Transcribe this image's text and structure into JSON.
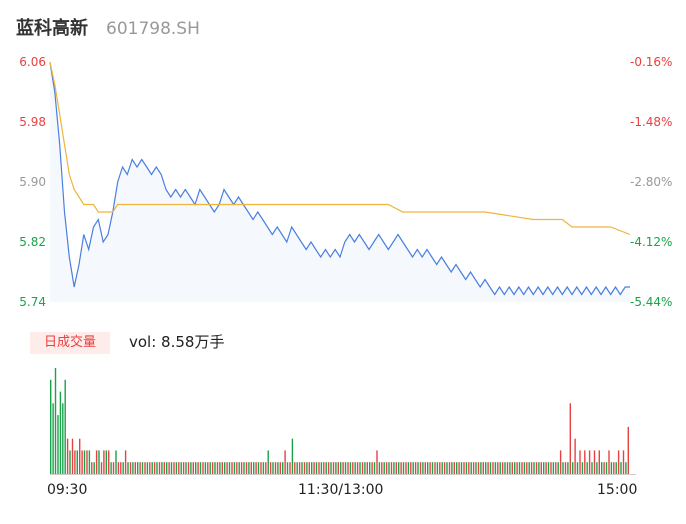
{
  "header": {
    "name": "蓝科高新",
    "code": "601798.SH"
  },
  "price_axis": [
    {
      "price": "6.06",
      "pct": "-0.16%",
      "color": "#e84141"
    },
    {
      "price": "5.98",
      "pct": "-1.48%",
      "color": "#e84141"
    },
    {
      "price": "5.90",
      "pct": "-2.80%",
      "color": "#999999"
    },
    {
      "price": "5.82",
      "pct": "-4.12%",
      "color": "#1aa34a"
    },
    {
      "price": "5.74",
      "pct": "-5.44%",
      "color": "#1aa34a"
    }
  ],
  "volume": {
    "tab_label": "日成交量",
    "summary": "vol: 8.58万手"
  },
  "time_axis": [
    "09:30",
    "11:30/13:00",
    "15:00"
  ],
  "colors": {
    "price_line": "#4a7fe0",
    "avg_line": "#f0b43c",
    "up": "#e84141",
    "down": "#1aa34a"
  },
  "chart_data": {
    "type": "line",
    "ylim": [
      5.74,
      6.06
    ],
    "xlim": [
      0,
      240
    ],
    "series": [
      {
        "values": [
          [
            0,
            6.06
          ],
          [
            2,
            6.02
          ],
          [
            4,
            5.95
          ],
          [
            6,
            5.86
          ],
          [
            8,
            5.8
          ],
          [
            10,
            5.76
          ],
          [
            12,
            5.79
          ],
          [
            14,
            5.83
          ],
          [
            16,
            5.81
          ],
          [
            18,
            5.84
          ],
          [
            20,
            5.85
          ],
          [
            22,
            5.82
          ],
          [
            24,
            5.83
          ],
          [
            26,
            5.86
          ],
          [
            28,
            5.9
          ],
          [
            30,
            5.92
          ],
          [
            32,
            5.91
          ],
          [
            34,
            5.93
          ],
          [
            36,
            5.92
          ],
          [
            38,
            5.93
          ],
          [
            40,
            5.92
          ],
          [
            42,
            5.91
          ],
          [
            44,
            5.92
          ],
          [
            46,
            5.91
          ],
          [
            48,
            5.89
          ],
          [
            50,
            5.88
          ],
          [
            52,
            5.89
          ],
          [
            54,
            5.88
          ],
          [
            56,
            5.89
          ],
          [
            58,
            5.88
          ],
          [
            60,
            5.87
          ],
          [
            62,
            5.89
          ],
          [
            64,
            5.88
          ],
          [
            66,
            5.87
          ],
          [
            68,
            5.86
          ],
          [
            70,
            5.87
          ],
          [
            72,
            5.89
          ],
          [
            74,
            5.88
          ],
          [
            76,
            5.87
          ],
          [
            78,
            5.88
          ],
          [
            80,
            5.87
          ],
          [
            82,
            5.86
          ],
          [
            84,
            5.85
          ],
          [
            86,
            5.86
          ],
          [
            88,
            5.85
          ],
          [
            90,
            5.84
          ],
          [
            92,
            5.83
          ],
          [
            94,
            5.84
          ],
          [
            96,
            5.83
          ],
          [
            98,
            5.82
          ],
          [
            100,
            5.84
          ],
          [
            102,
            5.83
          ],
          [
            104,
            5.82
          ],
          [
            106,
            5.81
          ],
          [
            108,
            5.82
          ],
          [
            110,
            5.81
          ],
          [
            112,
            5.8
          ],
          [
            114,
            5.81
          ],
          [
            116,
            5.8
          ],
          [
            118,
            5.81
          ],
          [
            120,
            5.8
          ],
          [
            122,
            5.82
          ],
          [
            124,
            5.83
          ],
          [
            126,
            5.82
          ],
          [
            128,
            5.83
          ],
          [
            130,
            5.82
          ],
          [
            132,
            5.81
          ],
          [
            134,
            5.82
          ],
          [
            136,
            5.83
          ],
          [
            138,
            5.82
          ],
          [
            140,
            5.81
          ],
          [
            142,
            5.82
          ],
          [
            144,
            5.83
          ],
          [
            146,
            5.82
          ],
          [
            148,
            5.81
          ],
          [
            150,
            5.8
          ],
          [
            152,
            5.81
          ],
          [
            154,
            5.8
          ],
          [
            156,
            5.81
          ],
          [
            158,
            5.8
          ],
          [
            160,
            5.79
          ],
          [
            162,
            5.8
          ],
          [
            164,
            5.79
          ],
          [
            166,
            5.78
          ],
          [
            168,
            5.79
          ],
          [
            170,
            5.78
          ],
          [
            172,
            5.77
          ],
          [
            174,
            5.78
          ],
          [
            176,
            5.77
          ],
          [
            178,
            5.76
          ],
          [
            180,
            5.77
          ],
          [
            182,
            5.76
          ],
          [
            184,
            5.75
          ],
          [
            186,
            5.76
          ],
          [
            188,
            5.75
          ],
          [
            190,
            5.76
          ],
          [
            192,
            5.75
          ],
          [
            194,
            5.76
          ],
          [
            196,
            5.75
          ],
          [
            198,
            5.76
          ],
          [
            200,
            5.75
          ],
          [
            202,
            5.76
          ],
          [
            204,
            5.75
          ],
          [
            206,
            5.76
          ],
          [
            208,
            5.75
          ],
          [
            210,
            5.76
          ],
          [
            212,
            5.75
          ],
          [
            214,
            5.76
          ],
          [
            216,
            5.75
          ],
          [
            218,
            5.76
          ],
          [
            220,
            5.75
          ],
          [
            222,
            5.76
          ],
          [
            224,
            5.75
          ],
          [
            226,
            5.76
          ],
          [
            228,
            5.75
          ],
          [
            230,
            5.76
          ],
          [
            232,
            5.75
          ],
          [
            234,
            5.76
          ],
          [
            236,
            5.75
          ],
          [
            238,
            5.76
          ],
          [
            240,
            5.76
          ]
        ]
      },
      {
        "values": [
          [
            0,
            6.06
          ],
          [
            2,
            6.03
          ],
          [
            4,
            5.99
          ],
          [
            6,
            5.95
          ],
          [
            8,
            5.91
          ],
          [
            10,
            5.89
          ],
          [
            12,
            5.88
          ],
          [
            14,
            5.87
          ],
          [
            18,
            5.87
          ],
          [
            20,
            5.86
          ],
          [
            22,
            5.86
          ],
          [
            26,
            5.86
          ],
          [
            28,
            5.87
          ],
          [
            40,
            5.87
          ],
          [
            60,
            5.87
          ],
          [
            80,
            5.87
          ],
          [
            100,
            5.87
          ],
          [
            120,
            5.87
          ],
          [
            140,
            5.87
          ],
          [
            146,
            5.86
          ],
          [
            160,
            5.86
          ],
          [
            180,
            5.86
          ],
          [
            200,
            5.85
          ],
          [
            212,
            5.85
          ],
          [
            216,
            5.84
          ],
          [
            226,
            5.84
          ],
          [
            232,
            5.84
          ],
          [
            240,
            5.83
          ]
        ]
      }
    ],
    "volume": [
      [
        "d",
        8
      ],
      [
        "d",
        6
      ],
      [
        "d",
        9
      ],
      [
        "d",
        5
      ],
      [
        "d",
        7
      ],
      [
        "d",
        6
      ],
      [
        "d",
        8
      ],
      [
        "u",
        3
      ],
      [
        "d",
        2
      ],
      [
        "u",
        3
      ],
      [
        "u",
        2
      ],
      [
        "d",
        2
      ],
      [
        "u",
        3
      ],
      [
        "u",
        2
      ],
      [
        "d",
        2
      ],
      [
        "u",
        2
      ],
      [
        "d",
        2
      ],
      [
        "u",
        1
      ],
      [
        "d",
        1
      ],
      [
        "u",
        2
      ],
      [
        "d",
        2
      ],
      [
        "u",
        1
      ],
      [
        "u",
        2
      ],
      [
        "d",
        2
      ],
      [
        "u",
        2
      ],
      [
        "d",
        1
      ],
      [
        "u",
        1
      ],
      [
        "d",
        2
      ],
      [
        "u",
        1
      ],
      [
        "u",
        1
      ],
      [
        "d",
        1
      ],
      [
        "u",
        2
      ],
      [
        "d",
        1
      ],
      [
        "u",
        1
      ],
      [
        "d",
        1
      ],
      [
        "u",
        1
      ],
      [
        "d",
        1
      ],
      [
        "u",
        1
      ],
      [
        "d",
        1
      ],
      [
        "u",
        1
      ],
      [
        "d",
        1
      ],
      [
        "u",
        1
      ],
      [
        "d",
        1
      ],
      [
        "u",
        1
      ],
      [
        "d",
        1
      ],
      [
        "u",
        1
      ],
      [
        "d",
        1
      ],
      [
        "u",
        1
      ],
      [
        "d",
        1
      ],
      [
        "u",
        1
      ],
      [
        "d",
        1
      ],
      [
        "u",
        1
      ],
      [
        "d",
        1
      ],
      [
        "u",
        1
      ],
      [
        "d",
        1
      ],
      [
        "u",
        1
      ],
      [
        "d",
        1
      ],
      [
        "u",
        1
      ],
      [
        "d",
        1
      ],
      [
        "u",
        1
      ],
      [
        "d",
        1
      ],
      [
        "u",
        1
      ],
      [
        "d",
        1
      ],
      [
        "u",
        1
      ],
      [
        "d",
        1
      ],
      [
        "u",
        1
      ],
      [
        "d",
        1
      ],
      [
        "u",
        1
      ],
      [
        "d",
        1
      ],
      [
        "u",
        1
      ],
      [
        "d",
        1
      ],
      [
        "u",
        1
      ],
      [
        "d",
        1
      ],
      [
        "u",
        1
      ],
      [
        "d",
        1
      ],
      [
        "u",
        1
      ],
      [
        "d",
        1
      ],
      [
        "u",
        1
      ],
      [
        "d",
        1
      ],
      [
        "u",
        1
      ],
      [
        "d",
        1
      ],
      [
        "u",
        1
      ],
      [
        "d",
        1
      ],
      [
        "u",
        1
      ],
      [
        "d",
        1
      ],
      [
        "u",
        1
      ],
      [
        "d",
        1
      ],
      [
        "u",
        1
      ],
      [
        "d",
        1
      ],
      [
        "u",
        1
      ],
      [
        "d",
        2
      ],
      [
        "u",
        1
      ],
      [
        "d",
        1
      ],
      [
        "u",
        1
      ],
      [
        "d",
        1
      ],
      [
        "u",
        1
      ],
      [
        "d",
        1
      ],
      [
        "u",
        2
      ],
      [
        "d",
        1
      ],
      [
        "u",
        1
      ],
      [
        "d",
        3
      ],
      [
        "u",
        1
      ],
      [
        "d",
        1
      ],
      [
        "u",
        1
      ],
      [
        "d",
        1
      ],
      [
        "u",
        1
      ],
      [
        "d",
        1
      ],
      [
        "u",
        1
      ],
      [
        "d",
        1
      ],
      [
        "u",
        1
      ],
      [
        "d",
        1
      ],
      [
        "u",
        1
      ],
      [
        "d",
        1
      ],
      [
        "u",
        1
      ],
      [
        "d",
        1
      ],
      [
        "u",
        1
      ],
      [
        "d",
        1
      ],
      [
        "u",
        1
      ],
      [
        "d",
        1
      ],
      [
        "u",
        1
      ],
      [
        "d",
        1
      ],
      [
        "u",
        1
      ],
      [
        "d",
        1
      ],
      [
        "u",
        1
      ],
      [
        "d",
        1
      ],
      [
        "u",
        1
      ],
      [
        "d",
        1
      ],
      [
        "u",
        1
      ],
      [
        "d",
        1
      ],
      [
        "u",
        1
      ],
      [
        "d",
        1
      ],
      [
        "u",
        1
      ],
      [
        "d",
        1
      ],
      [
        "u",
        1
      ],
      [
        "d",
        1
      ],
      [
        "u",
        2
      ],
      [
        "d",
        1
      ],
      [
        "u",
        1
      ],
      [
        "d",
        1
      ],
      [
        "u",
        1
      ],
      [
        "d",
        1
      ],
      [
        "u",
        1
      ],
      [
        "d",
        1
      ],
      [
        "u",
        1
      ],
      [
        "d",
        1
      ],
      [
        "u",
        1
      ],
      [
        "d",
        1
      ],
      [
        "u",
        1
      ],
      [
        "d",
        1
      ],
      [
        "u",
        1
      ],
      [
        "d",
        1
      ],
      [
        "u",
        1
      ],
      [
        "d",
        1
      ],
      [
        "u",
        1
      ],
      [
        "d",
        1
      ],
      [
        "u",
        1
      ],
      [
        "d",
        1
      ],
      [
        "u",
        1
      ],
      [
        "d",
        1
      ],
      [
        "u",
        1
      ],
      [
        "d",
        1
      ],
      [
        "u",
        1
      ],
      [
        "d",
        1
      ],
      [
        "u",
        1
      ],
      [
        "d",
        1
      ],
      [
        "u",
        1
      ],
      [
        "d",
        1
      ],
      [
        "u",
        1
      ],
      [
        "d",
        1
      ],
      [
        "u",
        1
      ],
      [
        "d",
        1
      ],
      [
        "u",
        1
      ],
      [
        "d",
        1
      ],
      [
        "u",
        1
      ],
      [
        "d",
        1
      ],
      [
        "u",
        1
      ],
      [
        "d",
        1
      ],
      [
        "u",
        1
      ],
      [
        "d",
        1
      ],
      [
        "u",
        1
      ],
      [
        "d",
        1
      ],
      [
        "u",
        1
      ],
      [
        "d",
        1
      ],
      [
        "u",
        1
      ],
      [
        "d",
        1
      ],
      [
        "u",
        1
      ],
      [
        "d",
        1
      ],
      [
        "u",
        1
      ],
      [
        "d",
        1
      ],
      [
        "u",
        1
      ],
      [
        "d",
        1
      ],
      [
        "u",
        1
      ],
      [
        "d",
        1
      ],
      [
        "u",
        1
      ],
      [
        "d",
        1
      ],
      [
        "u",
        1
      ],
      [
        "d",
        1
      ],
      [
        "u",
        1
      ],
      [
        "d",
        1
      ],
      [
        "u",
        1
      ],
      [
        "d",
        1
      ],
      [
        "u",
        1
      ],
      [
        "d",
        1
      ],
      [
        "u",
        1
      ],
      [
        "d",
        1
      ],
      [
        "u",
        1
      ],
      [
        "d",
        1
      ],
      [
        "u",
        1
      ],
      [
        "d",
        1
      ],
      [
        "u",
        1
      ],
      [
        "d",
        1
      ],
      [
        "u",
        2
      ],
      [
        "d",
        1
      ],
      [
        "u",
        1
      ],
      [
        "d",
        1
      ],
      [
        "u",
        6
      ],
      [
        "d",
        1
      ],
      [
        "u",
        3
      ],
      [
        "d",
        1
      ],
      [
        "u",
        2
      ],
      [
        "d",
        1
      ],
      [
        "u",
        2
      ],
      [
        "d",
        1
      ],
      [
        "u",
        2
      ],
      [
        "d",
        1
      ],
      [
        "u",
        2
      ],
      [
        "d",
        1
      ],
      [
        "u",
        2
      ],
      [
        "d",
        1
      ],
      [
        "u",
        1
      ],
      [
        "d",
        1
      ],
      [
        "u",
        2
      ],
      [
        "d",
        1
      ],
      [
        "u",
        1
      ],
      [
        "d",
        1
      ],
      [
        "u",
        2
      ],
      [
        "d",
        1
      ],
      [
        "u",
        2
      ],
      [
        "d",
        1
      ],
      [
        "u",
        4
      ]
    ]
  }
}
